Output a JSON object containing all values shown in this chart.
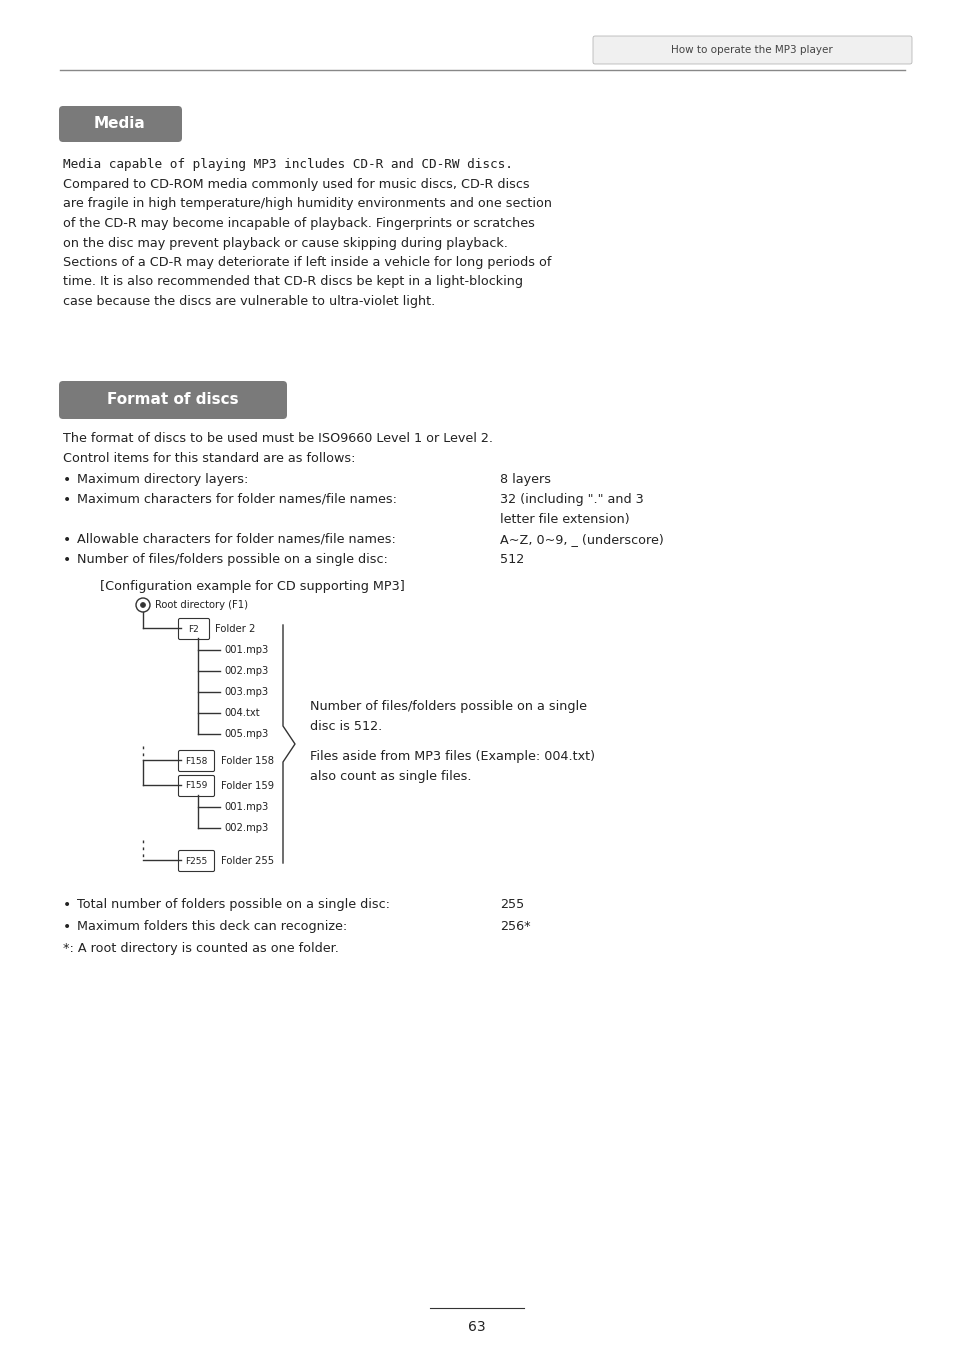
{
  "page_header_text": "How to operate the MP3 player",
  "media_label": "Media",
  "media_paragraph_line1": "Media capable of playing MP3 includes CD-R and CD-RW discs.",
  "media_paragraph_rest": "Compared to CD-ROM media commonly used for music discs, CD-R discs\nare fragile in high temperature/high humidity environments and one section\nof the CD-R may become incapable of playback. Fingerprints or scratches\non the disc may prevent playback or cause skipping during playback.\nSections of a CD-R may deteriorate if left inside a vehicle for long periods of\ntime. It is also recommended that CD-R discs be kept in a light-blocking\ncase because the discs are vulnerable to ultra-violet light.",
  "format_label": "Format of discs",
  "format_intro_1": "The format of discs to be used must be ISO9660 Level 1 or Level 2.",
  "format_intro_2": "Control items for this standard are as follows:",
  "bullet1_label": "Maximum directory layers:",
  "bullet1_value": "8 layers",
  "bullet2_label": "Maximum characters for folder names/file names:",
  "bullet2_value1": "32 (including \".\" and 3",
  "bullet2_value2": "letter file extension)",
  "bullet3_label": "Allowable characters for folder names/file names:",
  "bullet3_value": "A~Z, 0~9, _ (underscore)",
  "bullet4_label": "Number of files/folders possible on a single disc:",
  "bullet4_value": "512",
  "config_label": "[Configuration example for CD supporting MP3]",
  "right_text_1a": "Number of files/folders possible on a single",
  "right_text_1b": "disc is 512.",
  "right_text_2a": "Files aside from MP3 files (Example: 004.txt)",
  "right_text_2b": "also count as single files.",
  "bottom1_label": "Total number of folders possible on a single disc:",
  "bottom1_value": "255",
  "bottom2_label": "Maximum folders this deck can recognize:",
  "bottom2_value": "256*",
  "footnote": "*: A root directory is counted as one folder.",
  "page_number": "63",
  "bg_color": "#ffffff",
  "text_color": "#222222",
  "badge_color": "#7a7a7a",
  "badge_text_color": "#ffffff",
  "line_color": "#888888",
  "tree_color": "#333333"
}
